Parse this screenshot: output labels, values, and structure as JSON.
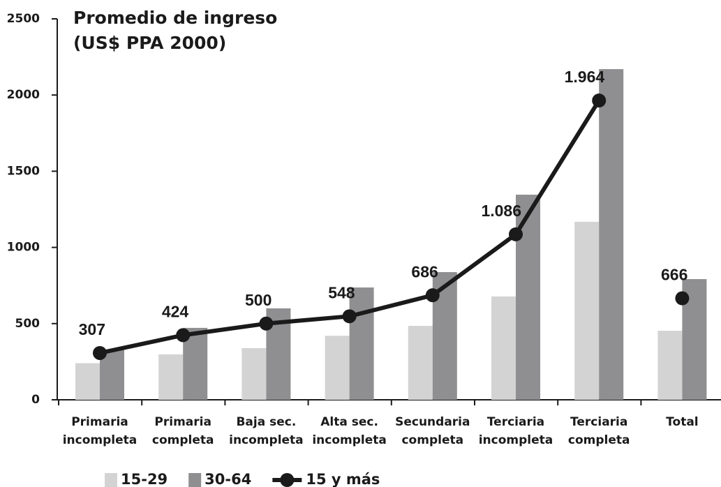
{
  "chart_data": {
    "type": "bar_line",
    "title": "Promedio de ingreso",
    "subtitle": "(US$ PPA 2000)",
    "categories": [
      [
        "Primaria",
        "incompleta"
      ],
      [
        "Primaria",
        "completa"
      ],
      [
        "Baja sec.",
        "incompleta"
      ],
      [
        "Alta sec.",
        "incompleta"
      ],
      [
        "Secundaria",
        "completa"
      ],
      [
        "Terciaria",
        "incompleta"
      ],
      [
        "Terciaria",
        "completa"
      ],
      [
        "Total"
      ]
    ],
    "series": [
      {
        "name": "15-29",
        "kind": "bar",
        "color": "#d3d3d3",
        "values": [
          240,
          298,
          339,
          420,
          485,
          678,
          1168,
          453
        ]
      },
      {
        "name": "30-64",
        "kind": "bar",
        "color": "#8f8f91",
        "values": [
          330,
          472,
          600,
          737,
          838,
          1346,
          2170,
          792
        ]
      },
      {
        "name": "15 y más",
        "kind": "line",
        "color": "#1a1a1a",
        "values": [
          307,
          424,
          500,
          548,
          686,
          1086,
          1964,
          666
        ],
        "value_labels": [
          "307",
          "424",
          "500",
          "548",
          "686",
          "1.086",
          "1.964",
          "666"
        ]
      }
    ],
    "ylim": [
      0,
      2500
    ],
    "yticks": [
      0,
      500,
      1000,
      1500,
      2000,
      2500
    ],
    "grid": false
  }
}
